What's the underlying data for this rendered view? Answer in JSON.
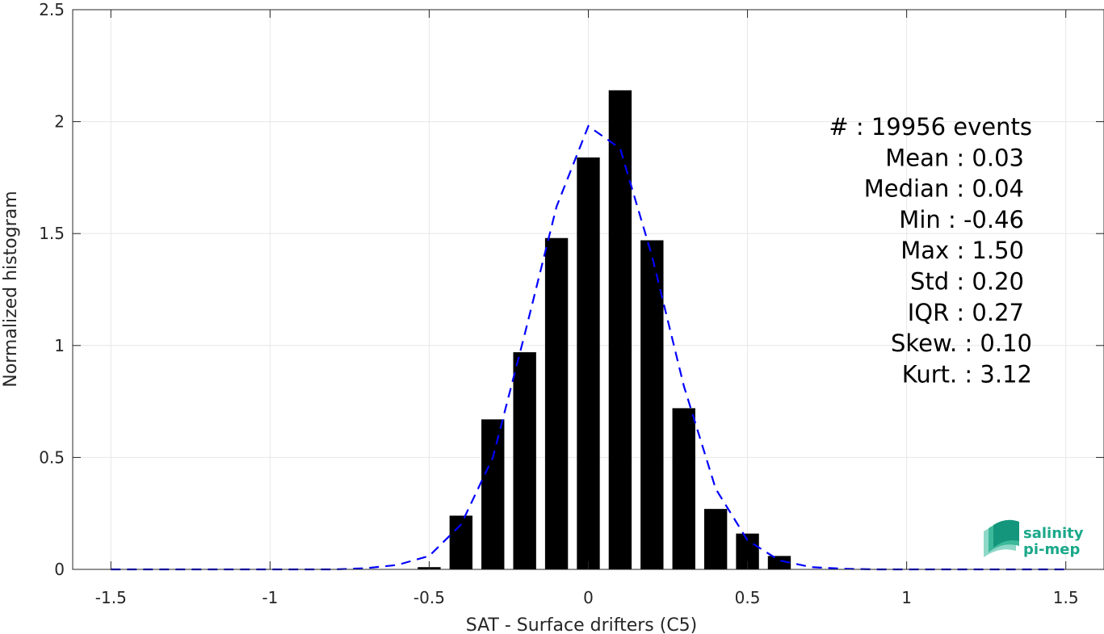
{
  "chart_data": {
    "type": "bar",
    "xlabel": "SAT - Surface drifters (C5)",
    "ylabel": "Normalized histogram",
    "xlim": [
      -1.62,
      1.62
    ],
    "ylim": [
      0,
      2.5
    ],
    "x_ticks": [
      -1.5,
      -1,
      -0.5,
      0,
      0.5,
      1,
      1.5
    ],
    "x_tick_labels": [
      "-1.5",
      "-1",
      "-0.5",
      "0",
      "0.5",
      "1",
      "1.5"
    ],
    "y_ticks": [
      0,
      0.5,
      1,
      1.5,
      2,
      2.5
    ],
    "y_tick_labels": [
      "0",
      "0.5",
      "1",
      "1.5",
      "2",
      "2.5"
    ],
    "grid": true,
    "bin_width": 0.1,
    "bar_fill_fraction": 0.72,
    "bars": {
      "x": [
        -0.5,
        -0.4,
        -0.3,
        -0.2,
        -0.1,
        0.0,
        0.1,
        0.2,
        0.3,
        0.4,
        0.5,
        0.6
      ],
      "values": [
        0.01,
        0.24,
        0.67,
        0.97,
        1.48,
        1.84,
        2.14,
        1.47,
        0.72,
        0.27,
        0.16,
        0.06
      ],
      "color": "#000000"
    },
    "fit_curve": {
      "style": "dashed",
      "color": "#0000ff",
      "x": [
        -1.5,
        -1.4,
        -1.3,
        -1.2,
        -1.1,
        -1.0,
        -0.9,
        -0.8,
        -0.7,
        -0.6,
        -0.5,
        -0.4,
        -0.3,
        -0.2,
        -0.1,
        0.0,
        0.1,
        0.2,
        0.3,
        0.4,
        0.5,
        0.6,
        0.7,
        0.8,
        0.9,
        1.0,
        1.1,
        1.2,
        1.3,
        1.4,
        1.5
      ],
      "y": [
        0.0,
        0.0,
        0.0,
        0.0,
        0.0,
        0.0,
        0.0,
        0.0,
        0.005,
        0.02,
        0.06,
        0.2,
        0.5,
        1.05,
        1.62,
        1.98,
        1.88,
        1.4,
        0.82,
        0.36,
        0.13,
        0.04,
        0.01,
        0.003,
        0.0,
        0.0,
        0.0,
        0.0,
        0.0,
        0.0,
        0.0
      ]
    },
    "stats": [
      {
        "label": "#  ",
        "value": "19956 events"
      },
      {
        "label": "Mean",
        "value": "0.03"
      },
      {
        "label": "Median",
        "value": "0.04"
      },
      {
        "label": "Min",
        "value": "-0.46"
      },
      {
        "label": "Max",
        "value": "1.50"
      },
      {
        "label": "Std",
        "value": "0.20"
      },
      {
        "label": "IQR",
        "value": "0.27"
      },
      {
        "label": "Skew.",
        "value": "0.10"
      },
      {
        "label": "Kurt.",
        "value": "3.12"
      }
    ]
  },
  "logo": {
    "line1": "salinity",
    "line2": "pi-mep",
    "color": "#1aa88a"
  }
}
